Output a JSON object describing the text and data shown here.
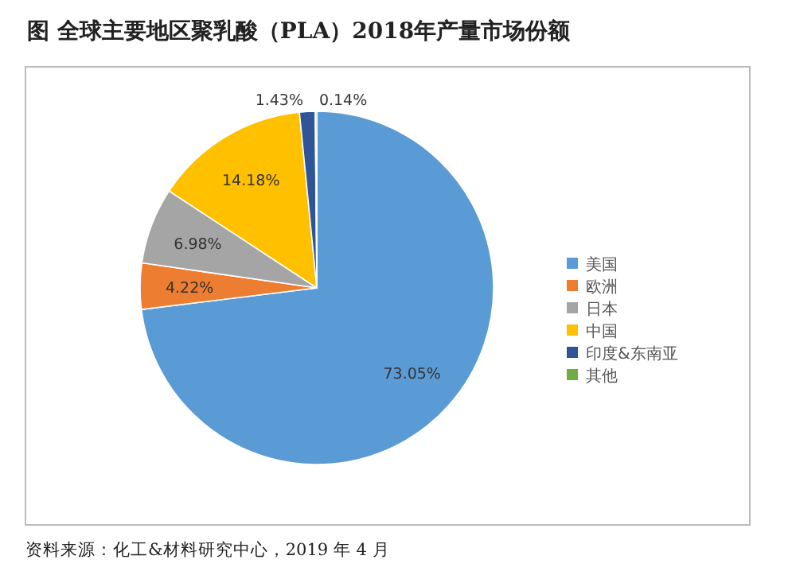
{
  "chart_data": {
    "type": "pie",
    "title": "图 全球主要地区聚乳酸（PLA）2018年产量市场份额",
    "categories": [
      "美国",
      "欧洲",
      "日本",
      "中国",
      "印度&东南亚",
      "其他"
    ],
    "values": [
      73.05,
      4.22,
      6.98,
      14.18,
      1.43,
      0.14
    ],
    "colors": [
      "#5b9bd5",
      "#ed7d31",
      "#a5a5a5",
      "#ffc000",
      "#2f5597",
      "#70ad47"
    ],
    "value_labels": [
      "73.05%",
      "4.22%",
      "6.98%",
      "14.18%",
      "1.43%",
      "0.14%"
    ],
    "legend": "right",
    "annotations": [
      "资料来源：化工&材料研究中心，2019 年 4 月"
    ]
  }
}
